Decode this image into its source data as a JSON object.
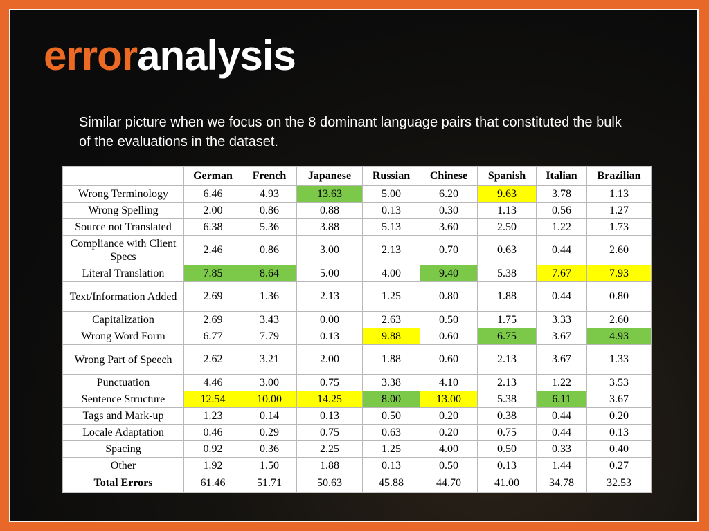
{
  "slide": {
    "title_part1": "error",
    "title_part2": "analysis",
    "subtitle": "Similar picture when we focus on the 8 dominant language pairs that constituted the bulk of the evaluations in the dataset."
  },
  "colors": {
    "frame": "#e8682a",
    "title_accent": "#ec6a24",
    "highlight_green": "#7cc94a",
    "highlight_yellow": "#ffff00"
  },
  "table": {
    "headers": [
      "",
      "German",
      "French",
      "Japanese",
      "Russian",
      "Chinese",
      "Spanish",
      "Italian",
      "Brazilian"
    ],
    "rows": [
      {
        "label": "Wrong Terminology",
        "values": [
          "6.46",
          "4.93",
          "13.63",
          "5.00",
          "6.20",
          "9.63",
          "3.78",
          "1.13"
        ],
        "highlight": [
          "",
          "",
          "green",
          "",
          "",
          "yellow",
          "",
          ""
        ]
      },
      {
        "label": "Wrong Spelling",
        "values": [
          "2.00",
          "0.86",
          "0.88",
          "0.13",
          "0.30",
          "1.13",
          "0.56",
          "1.27"
        ],
        "highlight": [
          "",
          "",
          "",
          "",
          "",
          "",
          "",
          ""
        ]
      },
      {
        "label": "Source not Translated",
        "values": [
          "6.38",
          "5.36",
          "3.88",
          "5.13",
          "3.60",
          "2.50",
          "1.22",
          "1.73"
        ],
        "highlight": [
          "",
          "",
          "",
          "",
          "",
          "",
          "",
          ""
        ]
      },
      {
        "label": "Compliance with Client Specs",
        "tall": true,
        "values": [
          "2.46",
          "0.86",
          "3.00",
          "2.13",
          "0.70",
          "0.63",
          "0.44",
          "2.60"
        ],
        "highlight": [
          "",
          "",
          "",
          "",
          "",
          "",
          "",
          ""
        ]
      },
      {
        "label": "Literal Translation",
        "values": [
          "7.85",
          "8.64",
          "5.00",
          "4.00",
          "9.40",
          "5.38",
          "7.67",
          "7.93"
        ],
        "highlight": [
          "green",
          "green",
          "",
          "",
          "green",
          "",
          "yellow",
          "yellow"
        ]
      },
      {
        "label": "Text/Information Added",
        "tall": true,
        "values": [
          "2.69",
          "1.36",
          "2.13",
          "1.25",
          "0.80",
          "1.88",
          "0.44",
          "0.80"
        ],
        "highlight": [
          "",
          "",
          "",
          "",
          "",
          "",
          "",
          ""
        ]
      },
      {
        "label": "Capitalization",
        "values": [
          "2.69",
          "3.43",
          "0.00",
          "2.63",
          "0.50",
          "1.75",
          "3.33",
          "2.60"
        ],
        "highlight": [
          "",
          "",
          "",
          "",
          "",
          "",
          "",
          ""
        ]
      },
      {
        "label": "Wrong Word Form",
        "values": [
          "6.77",
          "7.79",
          "0.13",
          "9.88",
          "0.60",
          "6.75",
          "3.67",
          "4.93"
        ],
        "highlight": [
          "",
          "",
          "",
          "yellow",
          "",
          "green",
          "",
          "green"
        ]
      },
      {
        "label": "Wrong Part of Speech",
        "tall": true,
        "values": [
          "2.62",
          "3.21",
          "2.00",
          "1.88",
          "0.60",
          "2.13",
          "3.67",
          "1.33"
        ],
        "highlight": [
          "",
          "",
          "",
          "",
          "",
          "",
          "",
          ""
        ]
      },
      {
        "label": "Punctuation",
        "values": [
          "4.46",
          "3.00",
          "0.75",
          "3.38",
          "4.10",
          "2.13",
          "1.22",
          "3.53"
        ],
        "highlight": [
          "",
          "",
          "",
          "",
          "",
          "",
          "",
          ""
        ]
      },
      {
        "label": "Sentence Structure",
        "values": [
          "12.54",
          "10.00",
          "14.25",
          "8.00",
          "13.00",
          "5.38",
          "6.11",
          "3.67"
        ],
        "highlight": [
          "yellow",
          "yellow",
          "yellow",
          "green",
          "yellow",
          "",
          "green",
          ""
        ]
      },
      {
        "label": "Tags and Mark-up",
        "values": [
          "1.23",
          "0.14",
          "0.13",
          "0.50",
          "0.20",
          "0.38",
          "0.44",
          "0.20"
        ],
        "highlight": [
          "",
          "",
          "",
          "",
          "",
          "",
          "",
          ""
        ]
      },
      {
        "label": "Locale Adaptation",
        "values": [
          "0.46",
          "0.29",
          "0.75",
          "0.63",
          "0.20",
          "0.75",
          "0.44",
          "0.13"
        ],
        "highlight": [
          "",
          "",
          "",
          "",
          "",
          "",
          "",
          ""
        ]
      },
      {
        "label": "Spacing",
        "values": [
          "0.92",
          "0.36",
          "2.25",
          "1.25",
          "4.00",
          "0.50",
          "0.33",
          "0.40"
        ],
        "highlight": [
          "",
          "",
          "",
          "",
          "",
          "",
          "",
          ""
        ]
      },
      {
        "label": "Other",
        "values": [
          "1.92",
          "1.50",
          "1.88",
          "0.13",
          "0.50",
          "0.13",
          "1.44",
          "0.27"
        ],
        "highlight": [
          "",
          "",
          "",
          "",
          "",
          "",
          "",
          ""
        ]
      }
    ],
    "total": {
      "label": "Total Errors",
      "values": [
        "61.46",
        "51.71",
        "50.63",
        "45.88",
        "44.70",
        "41.00",
        "34.78",
        "32.53"
      ]
    }
  }
}
